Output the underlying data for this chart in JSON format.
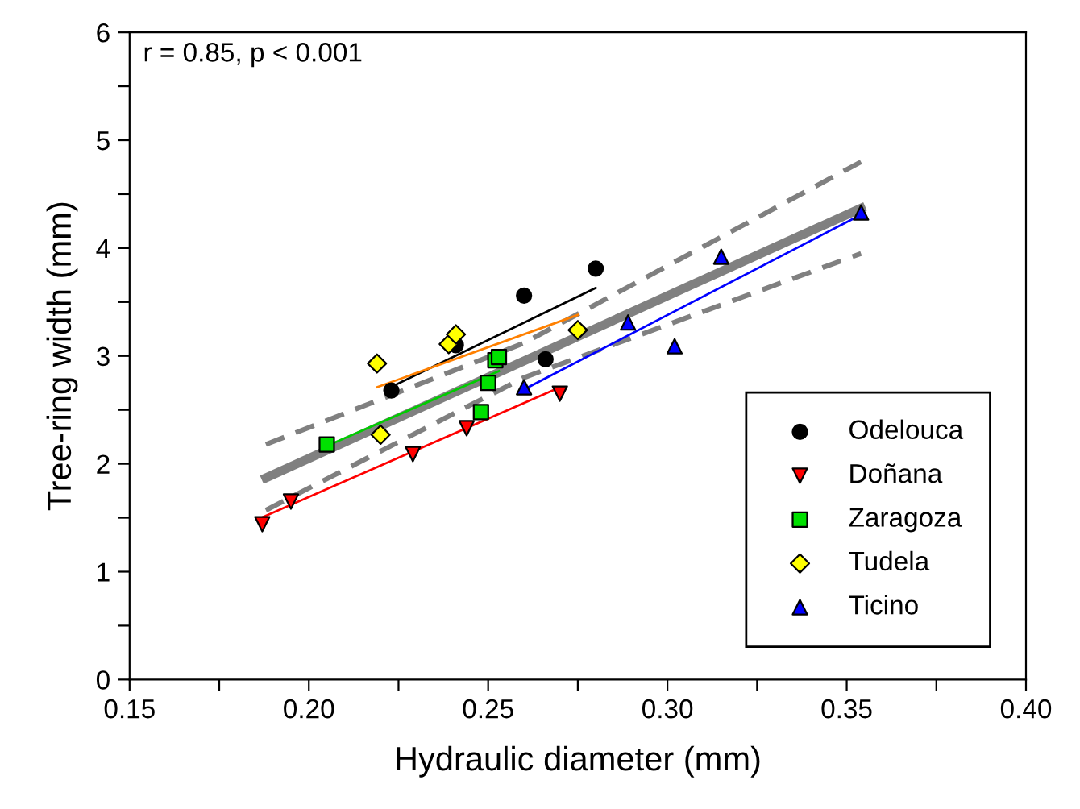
{
  "chart_data": {
    "type": "scatter",
    "xlabel": "Hydraulic diameter (mm)",
    "ylabel": "Tree-ring width (mm)",
    "annotations": [
      "r = 0.85, p < 0.001"
    ],
    "xlim": [
      0.15,
      0.4
    ],
    "ylim": [
      0,
      6
    ],
    "xticks": [
      0.15,
      {
        "value": 0.175,
        "label": null
      },
      "0.20",
      0.25,
      {
        "value": 0.225,
        "label": null
      },
      {
        "value": 0.275,
        "label": null
      },
      "0.30",
      {
        "value": 0.325,
        "label": null
      },
      0.35,
      {
        "value": 0.375,
        "label": null
      },
      "0.40"
    ],
    "yticks": [
      0,
      {
        "value": 0.5,
        "label": null
      },
      1,
      {
        "value": 1.5,
        "label": null
      },
      2,
      {
        "value": 2.5,
        "label": null
      },
      3,
      {
        "value": 3.5,
        "label": null
      },
      4,
      {
        "value": 4.5,
        "label": null
      },
      5,
      {
        "value": 5.5,
        "label": null
      },
      6
    ],
    "grid": false,
    "legend": "bottom right",
    "series": [
      {
        "type": "line",
        "color": "#808080",
        "line_style": "solid",
        "x": [
          0.188,
          0.354
        ],
        "values": [
          1.87,
          4.37
        ]
      },
      {
        "type": "line",
        "color": "#808080",
        "line_style": "dashed",
        "x": [
          0.188,
          0.26,
          0.354
        ],
        "values": [
          2.18,
          3.12,
          4.8
        ]
      },
      {
        "type": "line",
        "color": "#808080",
        "line_style": "dashed",
        "x": [
          0.188,
          0.26,
          0.354
        ],
        "values": [
          1.57,
          2.8,
          3.95
        ]
      },
      {
        "type": "line",
        "color": "#000000",
        "line_style": "solid",
        "x": [
          0.224,
          0.28
        ],
        "values": [
          2.73,
          3.63
        ]
      },
      {
        "type": "line",
        "color": "#ff0000",
        "line_style": "solid",
        "x": [
          0.186,
          0.268
        ],
        "values": [
          1.49,
          2.68
        ]
      },
      {
        "type": "line",
        "color": "#00cc00",
        "line_style": "solid",
        "x": [
          0.206,
          0.253
        ],
        "values": [
          2.18,
          2.86
        ]
      },
      {
        "type": "line",
        "color": "#ff8000",
        "line_style": "solid",
        "x": [
          0.219,
          0.275
        ],
        "values": [
          2.71,
          3.38
        ]
      },
      {
        "type": "line",
        "color": "#0000ff",
        "line_style": "solid",
        "x": [
          0.26,
          0.354
        ],
        "values": [
          2.69,
          4.31
        ]
      },
      {
        "name": "Odelouca",
        "color": "#000000",
        "marker": "circle",
        "x": [
          0.223,
          0.241,
          0.26,
          0.266,
          0.28
        ],
        "values": [
          2.68,
          3.1,
          3.56,
          2.97,
          3.81
        ]
      },
      {
        "name": "Doñana",
        "color": "#ff0000",
        "marker": "triangle_down",
        "x": [
          0.187,
          0.195,
          0.229,
          0.244,
          0.27
        ],
        "values": [
          1.44,
          1.65,
          2.09,
          2.33,
          2.65
        ]
      },
      {
        "name": "Zaragoza",
        "color": "#00e000",
        "marker": "square",
        "x": [
          0.205,
          0.248,
          0.25,
          0.252,
          0.253
        ],
        "values": [
          2.18,
          2.48,
          2.75,
          2.96,
          2.99
        ]
      },
      {
        "name": "Tudela",
        "color": "#ffff00",
        "marker": "diamond",
        "x": [
          0.219,
          0.22,
          0.239,
          0.241,
          0.275
        ],
        "values": [
          2.93,
          2.27,
          3.11,
          3.2,
          3.24
        ]
      },
      {
        "name": "Ticino",
        "color": "#0000ff",
        "marker": "triangle",
        "x": [
          0.26,
          0.289,
          0.302,
          0.315,
          0.354
        ],
        "values": [
          2.71,
          3.31,
          3.09,
          3.92,
          4.33
        ]
      }
    ]
  }
}
